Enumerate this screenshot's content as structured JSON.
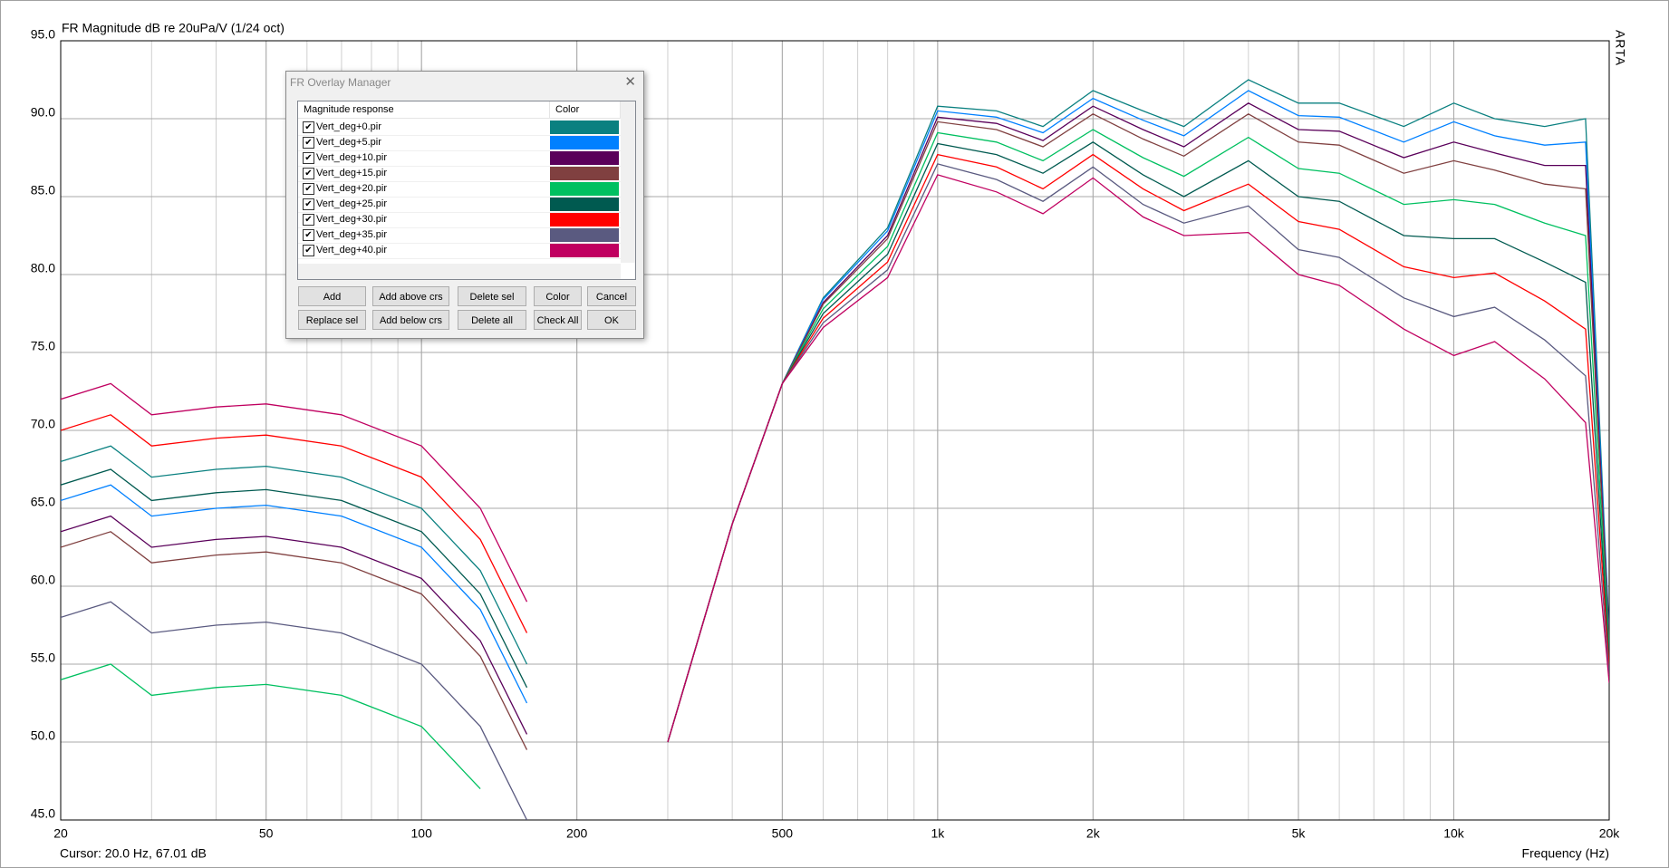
{
  "chart_data": {
    "type": "line",
    "title": "FR Magnitude dB re 20uPa/V (1/24 oct)",
    "x_label": "Frequency (Hz)",
    "status": "Cursor: 20.0 Hz, 67.01 dB",
    "brand": "ARTA",
    "log_x": true,
    "grid": true,
    "minor_grid": true,
    "xlim": [
      20,
      20000
    ],
    "xticks": [
      20,
      50,
      100,
      200,
      500,
      {
        "value": 1000,
        "label": "1k"
      },
      {
        "value": 2000,
        "label": "2k"
      },
      {
        "value": 5000,
        "label": "5k"
      },
      {
        "value": 10000,
        "label": "10k"
      },
      {
        "value": 20000,
        "label": "20k"
      }
    ],
    "ylim": [
      45,
      95
    ],
    "yticks": [
      {
        "value": 45,
        "label": "45.0"
      },
      {
        "value": 50,
        "label": "50.0"
      },
      {
        "value": 55,
        "label": "55.0"
      },
      {
        "value": 60,
        "label": "60.0"
      },
      {
        "value": 65,
        "label": "65.0"
      },
      {
        "value": 70,
        "label": "70.0"
      },
      {
        "value": 75,
        "label": "75.0"
      },
      {
        "value": 80,
        "label": "80.0"
      },
      {
        "value": 85,
        "label": "85.0"
      },
      {
        "value": 90,
        "label": "90.0"
      },
      {
        "value": 95,
        "label": "95.0"
      }
    ],
    "x": [
      20,
      25,
      30,
      40,
      50,
      70,
      100,
      130,
      160,
      200,
      250,
      300,
      400,
      500,
      600,
      800,
      1000,
      1300,
      1600,
      2000,
      2500,
      3000,
      4000,
      5000,
      6000,
      8000,
      10000,
      12000,
      15000,
      18000,
      20000
    ],
    "series": [
      {
        "name": "Vert_deg+0.pir",
        "color": "#0a8080",
        "values": [
          68,
          69,
          67,
          67.5,
          67.7,
          67,
          65,
          61,
          55,
          null,
          null,
          50,
          64,
          73,
          78.5,
          83,
          90.8,
          90.5,
          89.5,
          91.8,
          90.5,
          89.5,
          92.5,
          91,
          91,
          89.5,
          91,
          90,
          89.5,
          90,
          57
        ]
      },
      {
        "name": "Vert_deg+5.pir",
        "color": "#0080ff",
        "values": [
          65.5,
          66.5,
          64.5,
          65,
          65.2,
          64.5,
          62.5,
          58.5,
          52.5,
          null,
          null,
          50,
          64,
          73,
          78.4,
          82.8,
          90.5,
          90.1,
          89.1,
          91.3,
          89.9,
          88.9,
          91.8,
          90.2,
          90.1,
          88.5,
          89.8,
          88.9,
          88.3,
          88.5,
          56.8
        ]
      },
      {
        "name": "Vert_deg+10.pir",
        "color": "#5a005a",
        "values": [
          63.5,
          64.5,
          62.5,
          63,
          63.2,
          62.5,
          60.5,
          56.5,
          50.5,
          null,
          null,
          50,
          64,
          73,
          78.2,
          82.5,
          90.1,
          89.7,
          88.6,
          90.8,
          89.3,
          88.2,
          91,
          89.3,
          89.2,
          87.5,
          88.5,
          87.8,
          87,
          87,
          56.5
        ]
      },
      {
        "name": "Vert_deg+15.pir",
        "color": "#804040",
        "values": [
          62.5,
          63.5,
          61.5,
          62,
          62.2,
          61.5,
          59.5,
          55.5,
          49.5,
          null,
          null,
          50,
          64,
          73,
          78.1,
          82.3,
          89.8,
          89.3,
          88.2,
          90.3,
          88.7,
          87.6,
          90.3,
          88.5,
          88.3,
          86.5,
          87.3,
          86.7,
          85.8,
          85.5,
          56.3
        ]
      },
      {
        "name": "Vert_deg+20.pir",
        "color": "#00c060",
        "values": [
          54,
          55,
          53,
          53.5,
          53.7,
          53,
          51,
          47,
          null,
          null,
          null,
          50,
          64,
          73,
          77.8,
          81.8,
          89.1,
          88.5,
          87.3,
          89.3,
          87.5,
          86.3,
          88.8,
          86.8,
          86.5,
          84.5,
          84.8,
          84.5,
          83.3,
          82.5,
          55.8
        ]
      },
      {
        "name": "Vert_deg+25.pir",
        "color": "#005a50",
        "values": [
          66.5,
          67.5,
          65.5,
          66,
          66.2,
          65.5,
          63.5,
          59.5,
          53.5,
          null,
          null,
          50,
          64,
          73,
          77.5,
          81.3,
          88.4,
          87.7,
          86.5,
          88.5,
          86.4,
          85,
          87.3,
          85,
          84.7,
          82.5,
          82.3,
          82.3,
          80.8,
          79.5,
          55.3
        ]
      },
      {
        "name": "Vert_deg+30.pir",
        "color": "#ff0000",
        "values": [
          70,
          71,
          69,
          69.5,
          69.7,
          69,
          67,
          63,
          57,
          null,
          null,
          50,
          64,
          73,
          77.2,
          80.8,
          87.7,
          86.9,
          85.5,
          87.7,
          85.5,
          84.1,
          85.8,
          83.4,
          82.9,
          80.5,
          79.8,
          80.1,
          78.3,
          76.5,
          54.8
        ]
      },
      {
        "name": "Vert_deg+35.pir",
        "color": "#5a5a80",
        "values": [
          58,
          59,
          57,
          57.5,
          57.7,
          57,
          55,
          51,
          45,
          null,
          null,
          50,
          64,
          73,
          76.9,
          80.3,
          87.1,
          86.1,
          84.7,
          86.9,
          84.5,
          83.3,
          84.4,
          81.6,
          81.1,
          78.5,
          77.3,
          77.9,
          75.8,
          73.5,
          54.3
        ]
      },
      {
        "name": "Vert_deg+40.pir",
        "color": "#c00060",
        "values": [
          72,
          73,
          71,
          71.5,
          71.7,
          71,
          69,
          65,
          59,
          null,
          null,
          50,
          64,
          73,
          76.6,
          79.8,
          86.4,
          85.3,
          83.9,
          86.2,
          83.7,
          82.5,
          82.7,
          80,
          79.3,
          76.5,
          74.8,
          75.7,
          73.3,
          70.5,
          53.8
        ]
      }
    ]
  },
  "dialog": {
    "title": "FR Overlay Manager",
    "col_name": "Magnitude response",
    "col_color": "Color",
    "buttons": [
      [
        "Add",
        "Add above crs",
        "Delete sel",
        "Color",
        "Cancel"
      ],
      [
        "Replace sel",
        "Add below crs",
        "Delete all",
        "Check All",
        "OK"
      ]
    ]
  }
}
